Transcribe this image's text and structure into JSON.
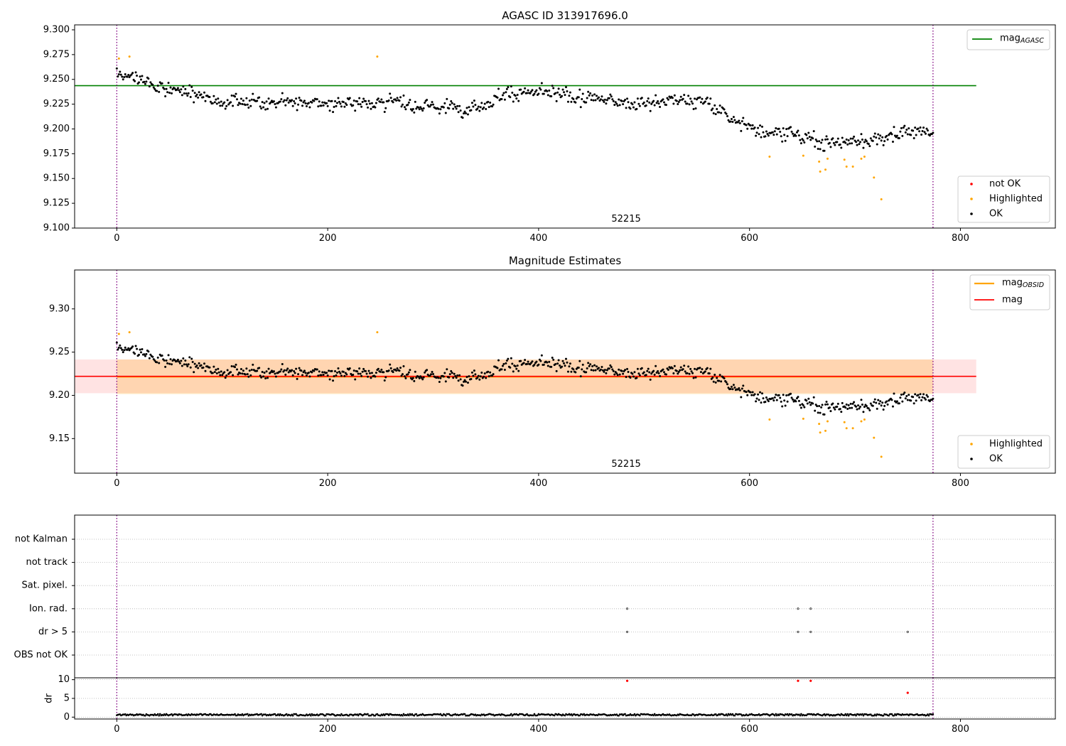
{
  "chart_data": [
    {
      "type": "scatter",
      "title": "AGASC ID 313917696.0",
      "annotation": "52215",
      "xlim": [
        -40,
        890
      ],
      "ylim": [
        9.1,
        9.305
      ],
      "x_ticks": [
        0,
        200,
        400,
        600,
        800
      ],
      "y_ticks": [
        9.1,
        9.125,
        9.15,
        9.175,
        9.2,
        9.225,
        9.25,
        9.275,
        9.3
      ],
      "y_tick_labels": [
        "9.100",
        "9.125",
        "9.150",
        "9.175",
        "9.200",
        "9.225",
        "9.250",
        "9.275",
        "9.300"
      ],
      "vlines": [
        0,
        774
      ],
      "hline": {
        "label_main": "mag",
        "label_sub": "AGASC",
        "y": 9.2437,
        "x_range": [
          -40,
          815
        ],
        "color": "#008000"
      },
      "legend": {
        "upper": "top-right",
        "lower": "bottom-right"
      },
      "legend_labels": {
        "not_ok": "not OK",
        "highlighted": "Highlighted",
        "ok": "OK"
      },
      "highlighted_points": [
        [
          2,
          9.271
        ],
        [
          12,
          9.273
        ],
        [
          247,
          9.273
        ],
        [
          619,
          9.172
        ],
        [
          651,
          9.173
        ],
        [
          666,
          9.167
        ],
        [
          667,
          9.157
        ],
        [
          672,
          9.159
        ],
        [
          674,
          9.17
        ],
        [
          690,
          9.169
        ],
        [
          692,
          9.162
        ],
        [
          698,
          9.162
        ],
        [
          706,
          9.17
        ],
        [
          709,
          9.172
        ],
        [
          718,
          9.151
        ],
        [
          725,
          9.129
        ]
      ]
    },
    {
      "type": "scatter",
      "title": "Magnitude Estimates",
      "annotation": "52215",
      "xlim": [
        -40,
        890
      ],
      "ylim": [
        9.11,
        9.345
      ],
      "x_ticks": [
        0,
        200,
        400,
        600,
        800
      ],
      "y_ticks": [
        9.15,
        9.2,
        9.25,
        9.3
      ],
      "y_tick_labels": [
        "9.15",
        "9.20",
        "9.25",
        "9.30"
      ],
      "vlines": [
        0,
        774
      ],
      "obsid_band": {
        "center": 9.2215,
        "low": 9.2015,
        "high": 9.2415,
        "x_range": [
          0,
          774
        ],
        "color": "#ffa500"
      },
      "mag_band": {
        "center": 9.222,
        "low": 9.2025,
        "high": 9.2415,
        "x_range": [
          -40,
          815
        ],
        "color": "#ff0000"
      },
      "legend": {
        "upper": "top-right",
        "lower": "bottom-right"
      },
      "legend_labels": {
        "obsid_main": "mag",
        "obsid_sub": "OBSID",
        "mag": "mag",
        "highlighted": "Highlighted",
        "ok": "OK"
      }
    },
    {
      "type": "scatter",
      "xlim": [
        -40,
        890
      ],
      "x_ticks": [
        0,
        200,
        400,
        600,
        800
      ],
      "vlines": [
        0,
        774
      ],
      "flag_rows": [
        "not Kalman",
        "not track",
        "Sat. pixel.",
        "Ion. rad.",
        "dr > 5",
        "OBS not OK"
      ],
      "flag_points": {
        "Ion. rad.": [
          484,
          646,
          658
        ],
        "dr > 5": [
          484,
          646,
          658,
          750
        ]
      }
    },
    {
      "type": "scatter",
      "ylabel": "dr",
      "xlim": [
        -40,
        890
      ],
      "ylim": [
        -0.5,
        10.5
      ],
      "x_ticks": [
        0,
        200,
        400,
        600,
        800
      ],
      "y_ticks": [
        0,
        5,
        10
      ],
      "y_tick_labels": [
        "0",
        "5",
        "10"
      ],
      "vlines": [
        0,
        774
      ],
      "outliers": [
        [
          484,
          9.7
        ],
        [
          646,
          9.7
        ],
        [
          658,
          9.7
        ],
        [
          750,
          6.5
        ]
      ]
    }
  ],
  "series_model": {
    "n": 775,
    "noise": 0.0085,
    "trend_knots": [
      [
        0,
        9.258
      ],
      [
        30,
        9.246
      ],
      [
        60,
        9.238
      ],
      [
        100,
        9.228
      ],
      [
        150,
        9.228
      ],
      [
        200,
        9.225
      ],
      [
        250,
        9.228
      ],
      [
        300,
        9.222
      ],
      [
        340,
        9.222
      ],
      [
        370,
        9.236
      ],
      [
        400,
        9.236
      ],
      [
        450,
        9.23
      ],
      [
        500,
        9.226
      ],
      [
        540,
        9.23
      ],
      [
        560,
        9.226
      ],
      [
        580,
        9.213
      ],
      [
        600,
        9.2
      ],
      [
        630,
        9.198
      ],
      [
        660,
        9.188
      ],
      [
        690,
        9.186
      ],
      [
        720,
        9.19
      ],
      [
        750,
        9.198
      ],
      [
        774,
        9.196
      ]
    ]
  },
  "colors": {
    "ok": "#000000",
    "highlighted": "#ffa500",
    "not_ok": "#ff0000",
    "vline": "#800080",
    "agasc": "#008000",
    "grid": "#b0b0b0"
  }
}
